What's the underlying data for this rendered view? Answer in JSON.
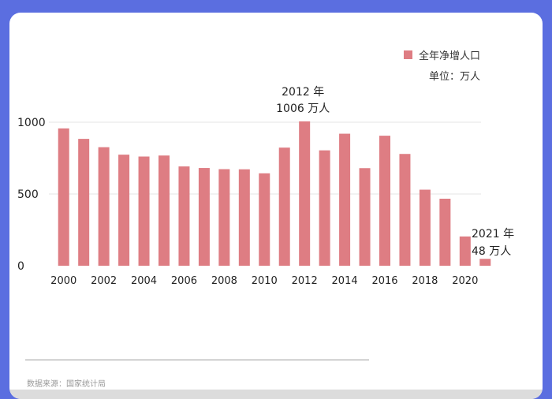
{
  "legend": {
    "label": "全年净增人口",
    "color": "#de7d83"
  },
  "unit_label": "单位：万人",
  "annotations": {
    "peak_year": "2012 年",
    "peak_value": "1006 万人",
    "last_year": "2021 年",
    "last_value": "48 万人"
  },
  "source": "数据来源：国家统计局",
  "chart_data": {
    "type": "bar",
    "categories": [
      "2000",
      "2001",
      "2002",
      "2003",
      "2004",
      "2005",
      "2006",
      "2007",
      "2008",
      "2009",
      "2010",
      "2011",
      "2012",
      "2013",
      "2014",
      "2015",
      "2016",
      "2017",
      "2018",
      "2019",
      "2020",
      "2021"
    ],
    "x_tick_labels": [
      "2000",
      "2002",
      "2004",
      "2006",
      "2008",
      "2010",
      "2012",
      "2014",
      "2016",
      "2018",
      "2020"
    ],
    "values": [
      957,
      884,
      826,
      774,
      761,
      768,
      692,
      681,
      673,
      672,
      644,
      823,
      1006,
      804,
      920,
      680,
      906,
      779,
      530,
      467,
      204,
      48
    ],
    "yticks": [
      0,
      500,
      1000
    ],
    "ylim": [
      0,
      1000
    ],
    "color": "#de7d83",
    "grid": true,
    "legend_position": "top-right"
  }
}
